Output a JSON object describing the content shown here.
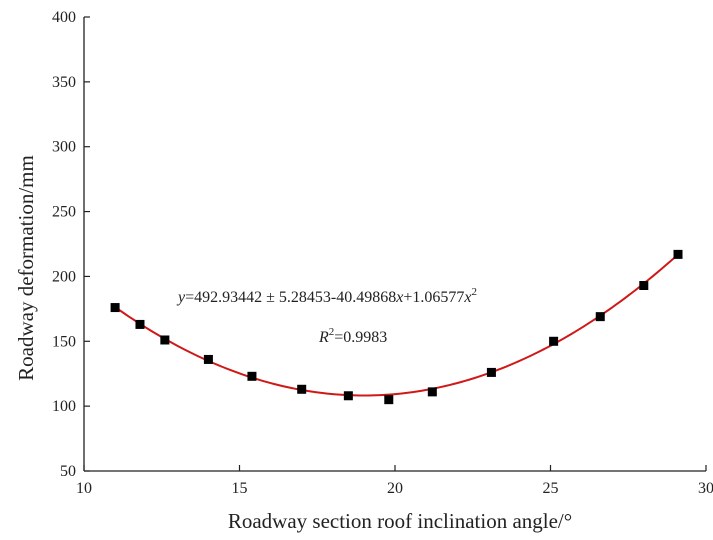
{
  "chart_data": {
    "type": "scatter",
    "xlabel": "Roadway section roof inclination angle/°",
    "ylabel": "Roadway deformation/mm",
    "xlim": [
      10,
      30
    ],
    "ylim": [
      50,
      400
    ],
    "xticks": [
      10,
      15,
      20,
      25,
      30
    ],
    "yticks": [
      50,
      100,
      150,
      200,
      250,
      300,
      350,
      400
    ],
    "grid": false,
    "series": [
      {
        "type": "scatter",
        "marker": "square",
        "color": "#000000",
        "x": [
          11.0,
          11.8,
          12.6,
          14.0,
          15.4,
          17.0,
          18.5,
          19.8,
          21.2,
          23.1,
          25.1,
          26.6,
          28.0,
          29.1
        ],
        "y": [
          176,
          163,
          151,
          136,
          123,
          113,
          108,
          105,
          111,
          126,
          150,
          169,
          193,
          217
        ]
      },
      {
        "type": "line",
        "role": "fit",
        "color": "#d01818",
        "coefficients": {
          "a": 492.93442,
          "b": -40.49868,
          "c": 1.06577
        },
        "x_range": [
          10.9,
          29.2
        ]
      }
    ],
    "annotations": {
      "equation": {
        "y": "y",
        "main": "=492.93442 ± 5.28453-40.49868",
        "x1": "x",
        "mid": "+1.06577",
        "x2": "x",
        "sup": "2"
      },
      "r2": {
        "R": "R",
        "sup": "2",
        "value": "=0.9983"
      }
    }
  }
}
